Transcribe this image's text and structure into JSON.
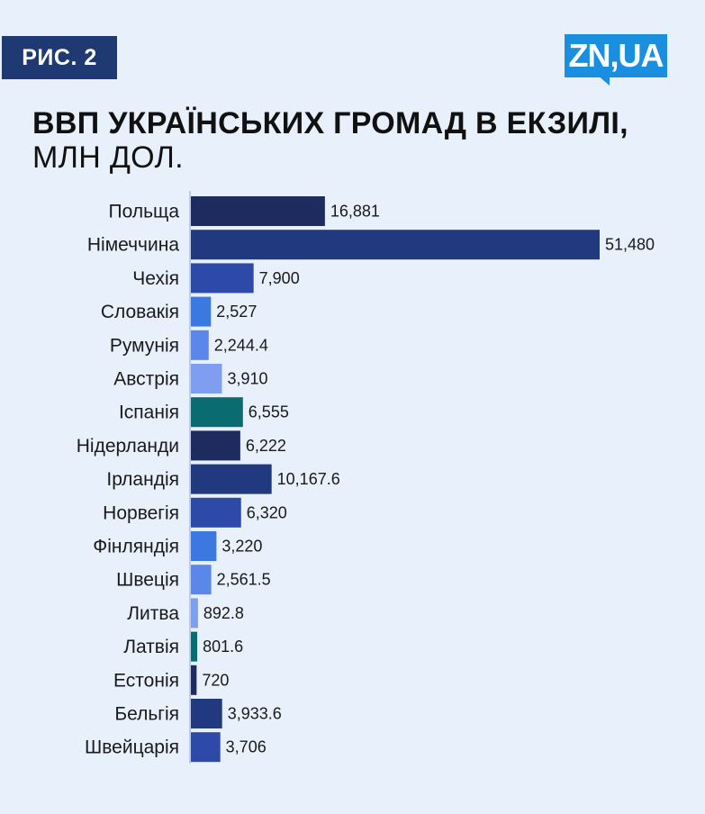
{
  "header": {
    "badge": "РИС. 2",
    "logo": "ZN,UA",
    "title": "ВВП УКРАЇНСЬКИХ ГРОМАД В ЕКЗИЛІ,",
    "subtitle": "МЛН ДОЛ."
  },
  "colors": {
    "background": "#e7f0fb",
    "badge": "#1f3a73",
    "logo": "#1a8fe0"
  },
  "chart_data": {
    "type": "bar",
    "orientation": "horizontal",
    "title": "ВВП УКРАЇНСЬКИХ ГРОМАД В ЕКЗИЛІ, МЛН ДОЛ.",
    "xlim": [
      0,
      51480
    ],
    "grid": false,
    "categories": [
      "Польща",
      "Німеччина",
      "Чехія",
      "Словакія",
      "Румунія",
      "Австрія",
      "Іспанія",
      "Нідерланди",
      "Ірландія",
      "Норвегія",
      "Фінляндія",
      "Швеція",
      "Литва",
      "Латвія",
      "Естонія",
      "Бельгія",
      "Швейцарія"
    ],
    "values": [
      16881,
      51480,
      7900,
      2527,
      2244.4,
      3910,
      6555,
      6222,
      10167.6,
      6320,
      3220,
      2561.5,
      892.8,
      801.6,
      720,
      3933.6,
      3706
    ],
    "value_labels": [
      "16,881",
      "51,480",
      "7,900",
      "2,527",
      "2,244.4",
      "3,910",
      "6,555",
      "6,222",
      "10,167.6",
      "6,320",
      "3,220",
      "2,561.5",
      "892.8",
      "801.6",
      "720",
      "3,933.6",
      "3,706"
    ],
    "bar_colors": [
      "#1e2b5e",
      "#213a7f",
      "#2d4aa8",
      "#3b78e0",
      "#5b86ea",
      "#7f9ef0",
      "#0a6b70",
      "#1e2b5e",
      "#213a7f",
      "#2d4aa8",
      "#3b78e0",
      "#5b86ea",
      "#7f9ef0",
      "#0a6b70",
      "#1e2b5e",
      "#213a7f",
      "#2d4aa8"
    ]
  }
}
